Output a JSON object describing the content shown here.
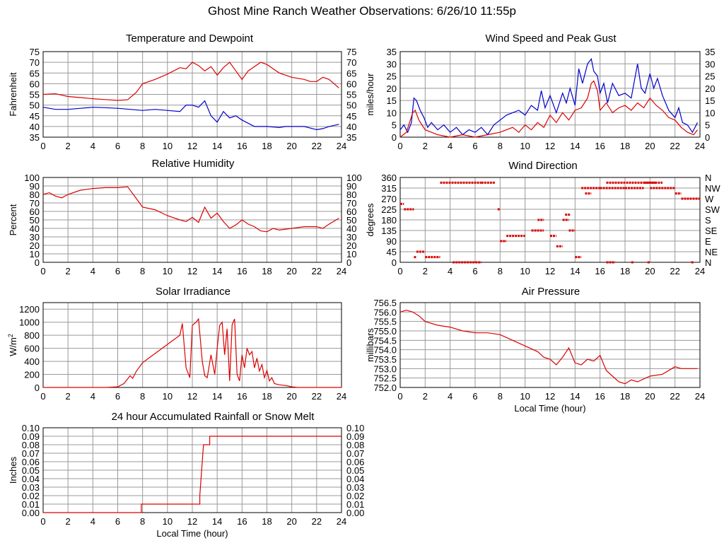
{
  "title": "Ghost Mine Ranch Weather Observations: 6/26/10 11:55p",
  "colors": {
    "red": "#dd0000",
    "blue": "#0000cc",
    "grid": "#999999"
  },
  "chart_data": [
    {
      "id": "temp",
      "type": "line",
      "title": "Temperature and Dewpoint",
      "ylabel": "Fahrenheit",
      "xlim": [
        0,
        24
      ],
      "ylim": [
        35,
        75
      ],
      "xticks": [
        0,
        2,
        4,
        6,
        8,
        10,
        12,
        14,
        16,
        18,
        20,
        22,
        24
      ],
      "yticks": [
        35,
        40,
        45,
        50,
        55,
        60,
        65,
        70,
        75
      ],
      "right_ticks": [
        "35",
        "40",
        "45",
        "50",
        "55",
        "60",
        "65",
        "70",
        "75"
      ],
      "grid": true,
      "series": [
        {
          "color": "red",
          "x": [
            0,
            1,
            2,
            3,
            4,
            5,
            6,
            6.8,
            7.5,
            8,
            9,
            10,
            11,
            11.5,
            12,
            12.5,
            13,
            13.5,
            14,
            14.5,
            15,
            15.5,
            16,
            16.5,
            17,
            17.5,
            18,
            18.5,
            19,
            20,
            21,
            21.5,
            22,
            22.5,
            23,
            23.8
          ],
          "y": [
            55,
            55.3,
            54,
            53.5,
            53,
            52.6,
            52.2,
            52.5,
            56,
            60,
            62,
            64.5,
            67.5,
            67,
            70,
            68.5,
            66,
            68,
            64,
            67.5,
            70,
            66,
            62,
            66,
            68,
            70,
            69,
            67,
            65,
            63,
            62,
            61,
            61,
            63,
            62,
            58
          ]
        },
        {
          "color": "blue",
          "x": [
            0,
            1,
            2,
            3,
            4,
            5,
            6,
            7,
            8,
            9,
            10,
            11,
            11.5,
            12,
            12.5,
            13,
            13.5,
            14,
            14.5,
            15,
            15.5,
            16,
            17,
            18,
            19,
            19.5,
            20,
            21,
            22,
            22.5,
            23,
            23.8
          ],
          "y": [
            49,
            48,
            48,
            48.5,
            49,
            48.8,
            48.5,
            48,
            47.5,
            48,
            47.5,
            47,
            50,
            50,
            49,
            52,
            45,
            42,
            47,
            44,
            45,
            43,
            40,
            40,
            39.5,
            40,
            40,
            40,
            38.5,
            39,
            40,
            41
          ]
        }
      ]
    },
    {
      "id": "wind",
      "type": "line",
      "title": "Wind Speed and Peak Gust",
      "ylabel": "miles/hour",
      "xlim": [
        0,
        24
      ],
      "ylim": [
        0,
        35
      ],
      "xticks": [
        0,
        2,
        4,
        6,
        8,
        10,
        12,
        14,
        16,
        18,
        20,
        22,
        24
      ],
      "yticks": [
        0,
        5,
        10,
        15,
        20,
        25,
        30,
        35
      ],
      "right_ticks": [
        "0",
        "5",
        "10",
        "15",
        "20",
        "25",
        "30",
        "35"
      ],
      "grid": true,
      "series": [
        {
          "color": "blue",
          "x": [
            0,
            0.3,
            0.6,
            0.9,
            1.1,
            1.3,
            1.6,
            1.9,
            2.2,
            2.5,
            3,
            3.5,
            4,
            4.5,
            5,
            5.5,
            6,
            6.5,
            7,
            7.5,
            8,
            8.5,
            9,
            9.5,
            10,
            10.5,
            11,
            11.3,
            11.6,
            12,
            12.5,
            13,
            13.3,
            13.6,
            14,
            14.3,
            14.6,
            15,
            15.3,
            15.5,
            15.8,
            16,
            16.3,
            16.6,
            17,
            17.5,
            18,
            18.5,
            19,
            19.3,
            19.6,
            20,
            20.3,
            20.6,
            21,
            21.5,
            22,
            22.3,
            22.6,
            23,
            23.4,
            23.8
          ],
          "y": [
            3,
            5,
            2,
            6,
            16,
            15,
            11,
            8,
            4,
            6,
            3,
            5,
            2,
            4,
            1,
            3,
            2,
            4,
            1,
            5,
            7,
            9,
            10,
            11,
            9,
            13,
            11,
            19,
            12,
            17,
            10,
            18,
            14,
            20,
            13,
            28,
            22,
            30,
            32,
            27,
            25,
            18,
            22,
            14,
            22,
            17,
            18,
            16,
            30,
            20,
            18,
            26,
            20,
            24,
            17,
            11,
            8,
            12,
            6,
            5,
            2,
            6
          ]
        },
        {
          "color": "red",
          "x": [
            0,
            0.5,
            1,
            1.2,
            1.5,
            2,
            2.5,
            3,
            4,
            5,
            6,
            7,
            8,
            8.5,
            9,
            9.5,
            10,
            10.5,
            11,
            11.5,
            12,
            12.5,
            13,
            13.5,
            14,
            14.5,
            15,
            15.3,
            15.5,
            15.8,
            16,
            16.5,
            17,
            17.5,
            18,
            18.5,
            19,
            19.5,
            20,
            20.5,
            21,
            21.5,
            22,
            22.5,
            23,
            23.5,
            23.8
          ],
          "y": [
            0,
            2,
            10,
            11,
            7,
            3,
            2,
            1,
            0,
            1,
            0,
            1,
            2,
            3,
            4,
            2,
            5,
            3,
            6,
            4,
            9,
            6,
            10,
            7,
            11,
            12,
            16,
            22,
            23,
            19,
            11,
            14,
            10,
            12,
            13,
            11,
            14,
            12,
            16,
            13,
            11,
            8,
            7,
            4,
            2,
            1,
            3
          ]
        }
      ]
    },
    {
      "id": "humidity",
      "type": "line",
      "title": "Relative Humidity",
      "ylabel": "Percent",
      "xlim": [
        0,
        24
      ],
      "ylim": [
        0,
        100
      ],
      "xticks": [
        0,
        2,
        4,
        6,
        8,
        10,
        12,
        14,
        16,
        18,
        20,
        22,
        24
      ],
      "yticks": [
        0,
        10,
        20,
        30,
        40,
        50,
        60,
        70,
        80,
        90,
        100
      ],
      "right_ticks": [
        "0",
        "10",
        "20",
        "30",
        "40",
        "50",
        "60",
        "70",
        "80",
        "90",
        "100"
      ],
      "grid": true,
      "series": [
        {
          "color": "red",
          "x": [
            0,
            0.5,
            1,
            1.5,
            2,
            3,
            4,
            5,
            6,
            6.8,
            7.5,
            8,
            9,
            10,
            11,
            11.5,
            12,
            12.5,
            13,
            13.5,
            14,
            14.5,
            15,
            15.5,
            16,
            16.5,
            17,
            17.5,
            18,
            18.5,
            19,
            20,
            21,
            22,
            22.5,
            23,
            23.8
          ],
          "y": [
            80,
            82,
            78,
            76,
            80,
            85,
            87,
            88,
            88,
            89,
            75,
            65,
            62,
            55,
            50,
            48,
            53,
            47,
            65,
            52,
            58,
            48,
            40,
            44,
            50,
            45,
            42,
            37,
            36,
            40,
            38,
            40,
            42,
            42,
            40,
            45,
            52
          ]
        }
      ]
    },
    {
      "id": "winddir",
      "type": "scatter",
      "title": "Wind Direction",
      "ylabel": "degrees",
      "xlim": [
        0,
        24
      ],
      "ylim": [
        0,
        360
      ],
      "xticks": [
        0,
        2,
        4,
        6,
        8,
        10,
        12,
        14,
        16,
        18,
        20,
        22,
        24
      ],
      "yticks": [
        0,
        45,
        90,
        135,
        180,
        225,
        270,
        315,
        360
      ],
      "right_ticks": [
        "N",
        "NE",
        "E",
        "SE",
        "S",
        "SW",
        "W",
        "NW",
        "N"
      ],
      "grid": true,
      "series": [
        {
          "color": "red",
          "segments": [
            [
              0,
              0.3,
              248
            ],
            [
              0.3,
              1.1,
              225
            ],
            [
              1.1,
              1.3,
              22
            ],
            [
              1.3,
              2,
              45
            ],
            [
              2,
              3.2,
              22
            ],
            [
              3.2,
              6.5,
              338
            ],
            [
              6.5,
              7.6,
              338
            ],
            [
              4.2,
              6.5,
              0
            ],
            [
              7.8,
              8,
              225
            ],
            [
              8,
              8.5,
              90
            ],
            [
              8.5,
              10,
              112
            ],
            [
              10.5,
              11.5,
              135
            ],
            [
              11,
              11.5,
              180
            ],
            [
              12,
              12.5,
              112
            ],
            [
              12.5,
              13,
              68
            ],
            [
              13,
              13.5,
              180
            ],
            [
              13.2,
              13.6,
              202
            ],
            [
              13.5,
              14,
              135
            ],
            [
              14,
              14.5,
              22
            ],
            [
              14.5,
              16,
              315
            ],
            [
              14.8,
              15.3,
              292
            ],
            [
              16,
              18,
              315
            ],
            [
              16.5,
              20.5,
              338
            ],
            [
              18,
              19.5,
              315
            ],
            [
              19.5,
              21,
              338
            ],
            [
              20,
              22,
              315
            ],
            [
              22,
              22.5,
              292
            ],
            [
              22.5,
              24,
              270
            ],
            [
              16.5,
              17.2,
              0
            ],
            [
              18.5,
              18.7,
              0
            ],
            [
              19.8,
              20,
              0
            ],
            [
              23.3,
              23.5,
              0
            ]
          ]
        }
      ]
    },
    {
      "id": "solar",
      "type": "line",
      "title": "Solar Irradiance",
      "ylabel": "W/m2",
      "xlim": [
        0,
        24
      ],
      "ylim": [
        0,
        1300
      ],
      "xticks": [
        0,
        2,
        4,
        6,
        8,
        10,
        12,
        14,
        16,
        18,
        20,
        22,
        24
      ],
      "yticks": [
        0,
        200,
        400,
        600,
        800,
        1000,
        1200
      ],
      "right_ticks": [],
      "grid": true,
      "series": [
        {
          "color": "red",
          "x": [
            0,
            5,
            6,
            6.5,
            7,
            7.2,
            7.5,
            8,
            9,
            10,
            10.5,
            11,
            11.2,
            11.5,
            11.8,
            12,
            12.3,
            12.5,
            12.8,
            13,
            13.2,
            13.5,
            13.8,
            14,
            14.2,
            14.4,
            14.6,
            14.8,
            15,
            15.2,
            15.4,
            15.6,
            15.8,
            16,
            16.2,
            16.4,
            16.6,
            16.8,
            17,
            17.2,
            17.4,
            17.6,
            17.8,
            18,
            18.2,
            18.4,
            18.6,
            19,
            19.5,
            20,
            20.5,
            24
          ],
          "y": [
            0,
            0,
            10,
            60,
            180,
            140,
            250,
            380,
            520,
            660,
            730,
            800,
            980,
            300,
            150,
            950,
            1000,
            1050,
            400,
            180,
            150,
            500,
            200,
            600,
            950,
            1000,
            500,
            900,
            100,
            960,
            1050,
            200,
            100,
            500,
            300,
            600,
            500,
            550,
            300,
            450,
            250,
            350,
            150,
            260,
            100,
            150,
            60,
            40,
            30,
            10,
            0,
            0
          ]
        }
      ]
    },
    {
      "id": "pressure",
      "type": "line",
      "title": "Air Pressure",
      "ylabel": "millibars",
      "xlabel": "Local Time (hour)",
      "xlim": [
        0,
        24
      ],
      "ylim": [
        752.0,
        756.5
      ],
      "xticks": [
        0,
        2,
        4,
        6,
        8,
        10,
        12,
        14,
        16,
        18,
        20,
        22,
        24
      ],
      "yticks": [
        752.0,
        752.5,
        753.0,
        753.5,
        754.0,
        754.5,
        755.0,
        755.5,
        756.0,
        756.5
      ],
      "right_ticks": [],
      "grid": true,
      "series": [
        {
          "color": "red",
          "x": [
            0,
            0.5,
            1,
            1.5,
            2,
            3,
            4,
            5,
            6,
            7,
            8,
            9,
            10,
            11,
            11.5,
            12,
            12.5,
            13,
            13.5,
            14,
            14.5,
            15,
            15.5,
            16,
            16.5,
            17,
            17.5,
            18,
            18.5,
            19,
            20,
            21,
            22,
            22.5,
            23,
            23.8
          ],
          "y": [
            756.0,
            756.1,
            756.0,
            755.8,
            755.5,
            755.3,
            755.2,
            755.0,
            754.9,
            754.9,
            754.8,
            754.5,
            754.2,
            753.9,
            753.6,
            753.5,
            753.2,
            753.6,
            754.1,
            753.3,
            753.2,
            753.5,
            753.4,
            753.7,
            752.9,
            752.6,
            752.3,
            752.2,
            752.4,
            752.3,
            752.6,
            752.7,
            753.1,
            753.0,
            753.0,
            753.0
          ]
        }
      ]
    },
    {
      "id": "rain",
      "type": "line",
      "title": "24 hour Accumulated Rainfall or Snow Melt",
      "ylabel": "Inches",
      "xlabel": "Local Time (hour)",
      "xlim": [
        0,
        24
      ],
      "ylim": [
        0,
        0.1
      ],
      "xticks": [
        0,
        2,
        4,
        6,
        8,
        10,
        12,
        14,
        16,
        18,
        20,
        22,
        24
      ],
      "yticks": [
        0,
        0.01,
        0.02,
        0.03,
        0.04,
        0.05,
        0.06,
        0.07,
        0.08,
        0.09,
        0.1
      ],
      "right_ticks": [
        "0.00",
        "0.01",
        "0.02",
        "0.03",
        "0.04",
        "0.05",
        "0.06",
        "0.07",
        "0.08",
        "0.09",
        "0.10"
      ],
      "grid": true,
      "series": [
        {
          "color": "red",
          "x": [
            0,
            7.9,
            7.9,
            12.6,
            12.6,
            12.9,
            12.9,
            13.4,
            13.4,
            24
          ],
          "y": [
            0,
            0,
            0.01,
            0.01,
            0.02,
            0.08,
            0.08,
            0.08,
            0.09,
            0.09
          ]
        }
      ]
    }
  ]
}
